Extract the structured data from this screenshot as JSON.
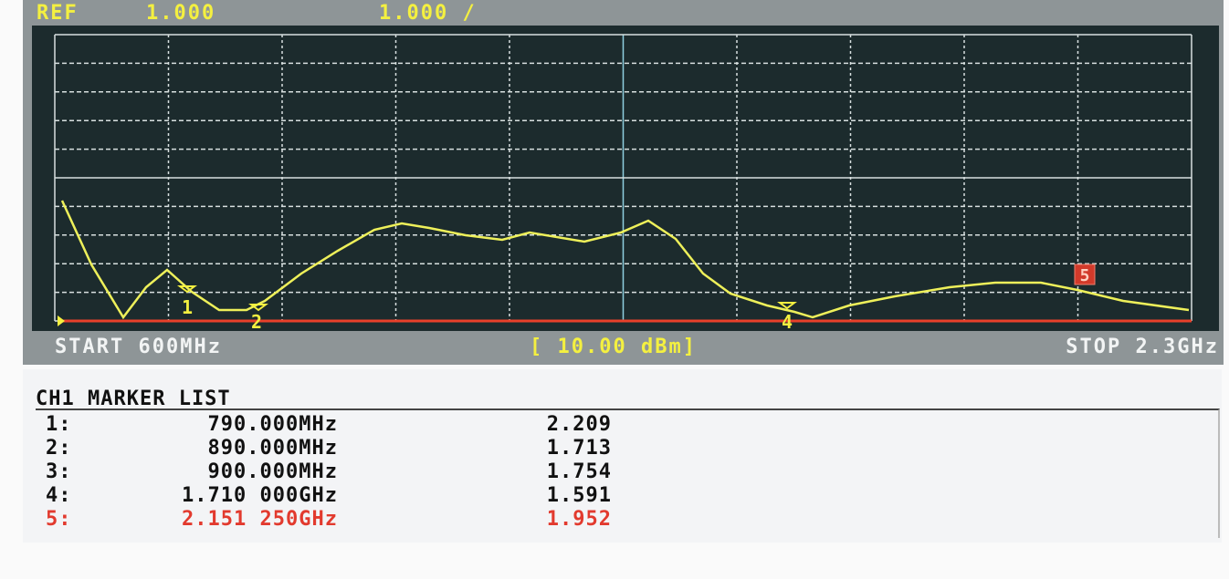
{
  "header": {
    "ref_label": "REF",
    "ref_value": "1.000",
    "scale": "1.000 /"
  },
  "footer": {
    "start": "START 600MHz",
    "power": "[ 10.00 dBm]",
    "stop": "STOP 2.3GHz"
  },
  "trace_markers": [
    "1",
    "2",
    "4",
    "5"
  ],
  "marker_list": {
    "title": "CH1 MARKER LIST",
    "rows": [
      [
        "1:",
        "790.000MHz",
        "2.209"
      ],
      [
        "2:",
        "890.000MHz",
        "1.713"
      ],
      [
        "3:",
        "900.000MHz",
        "1.754"
      ],
      [
        "4:",
        "1.710 000GHz",
        "1.591"
      ],
      [
        "5:",
        "2.151 250GHz",
        "1.952"
      ]
    ]
  }
}
